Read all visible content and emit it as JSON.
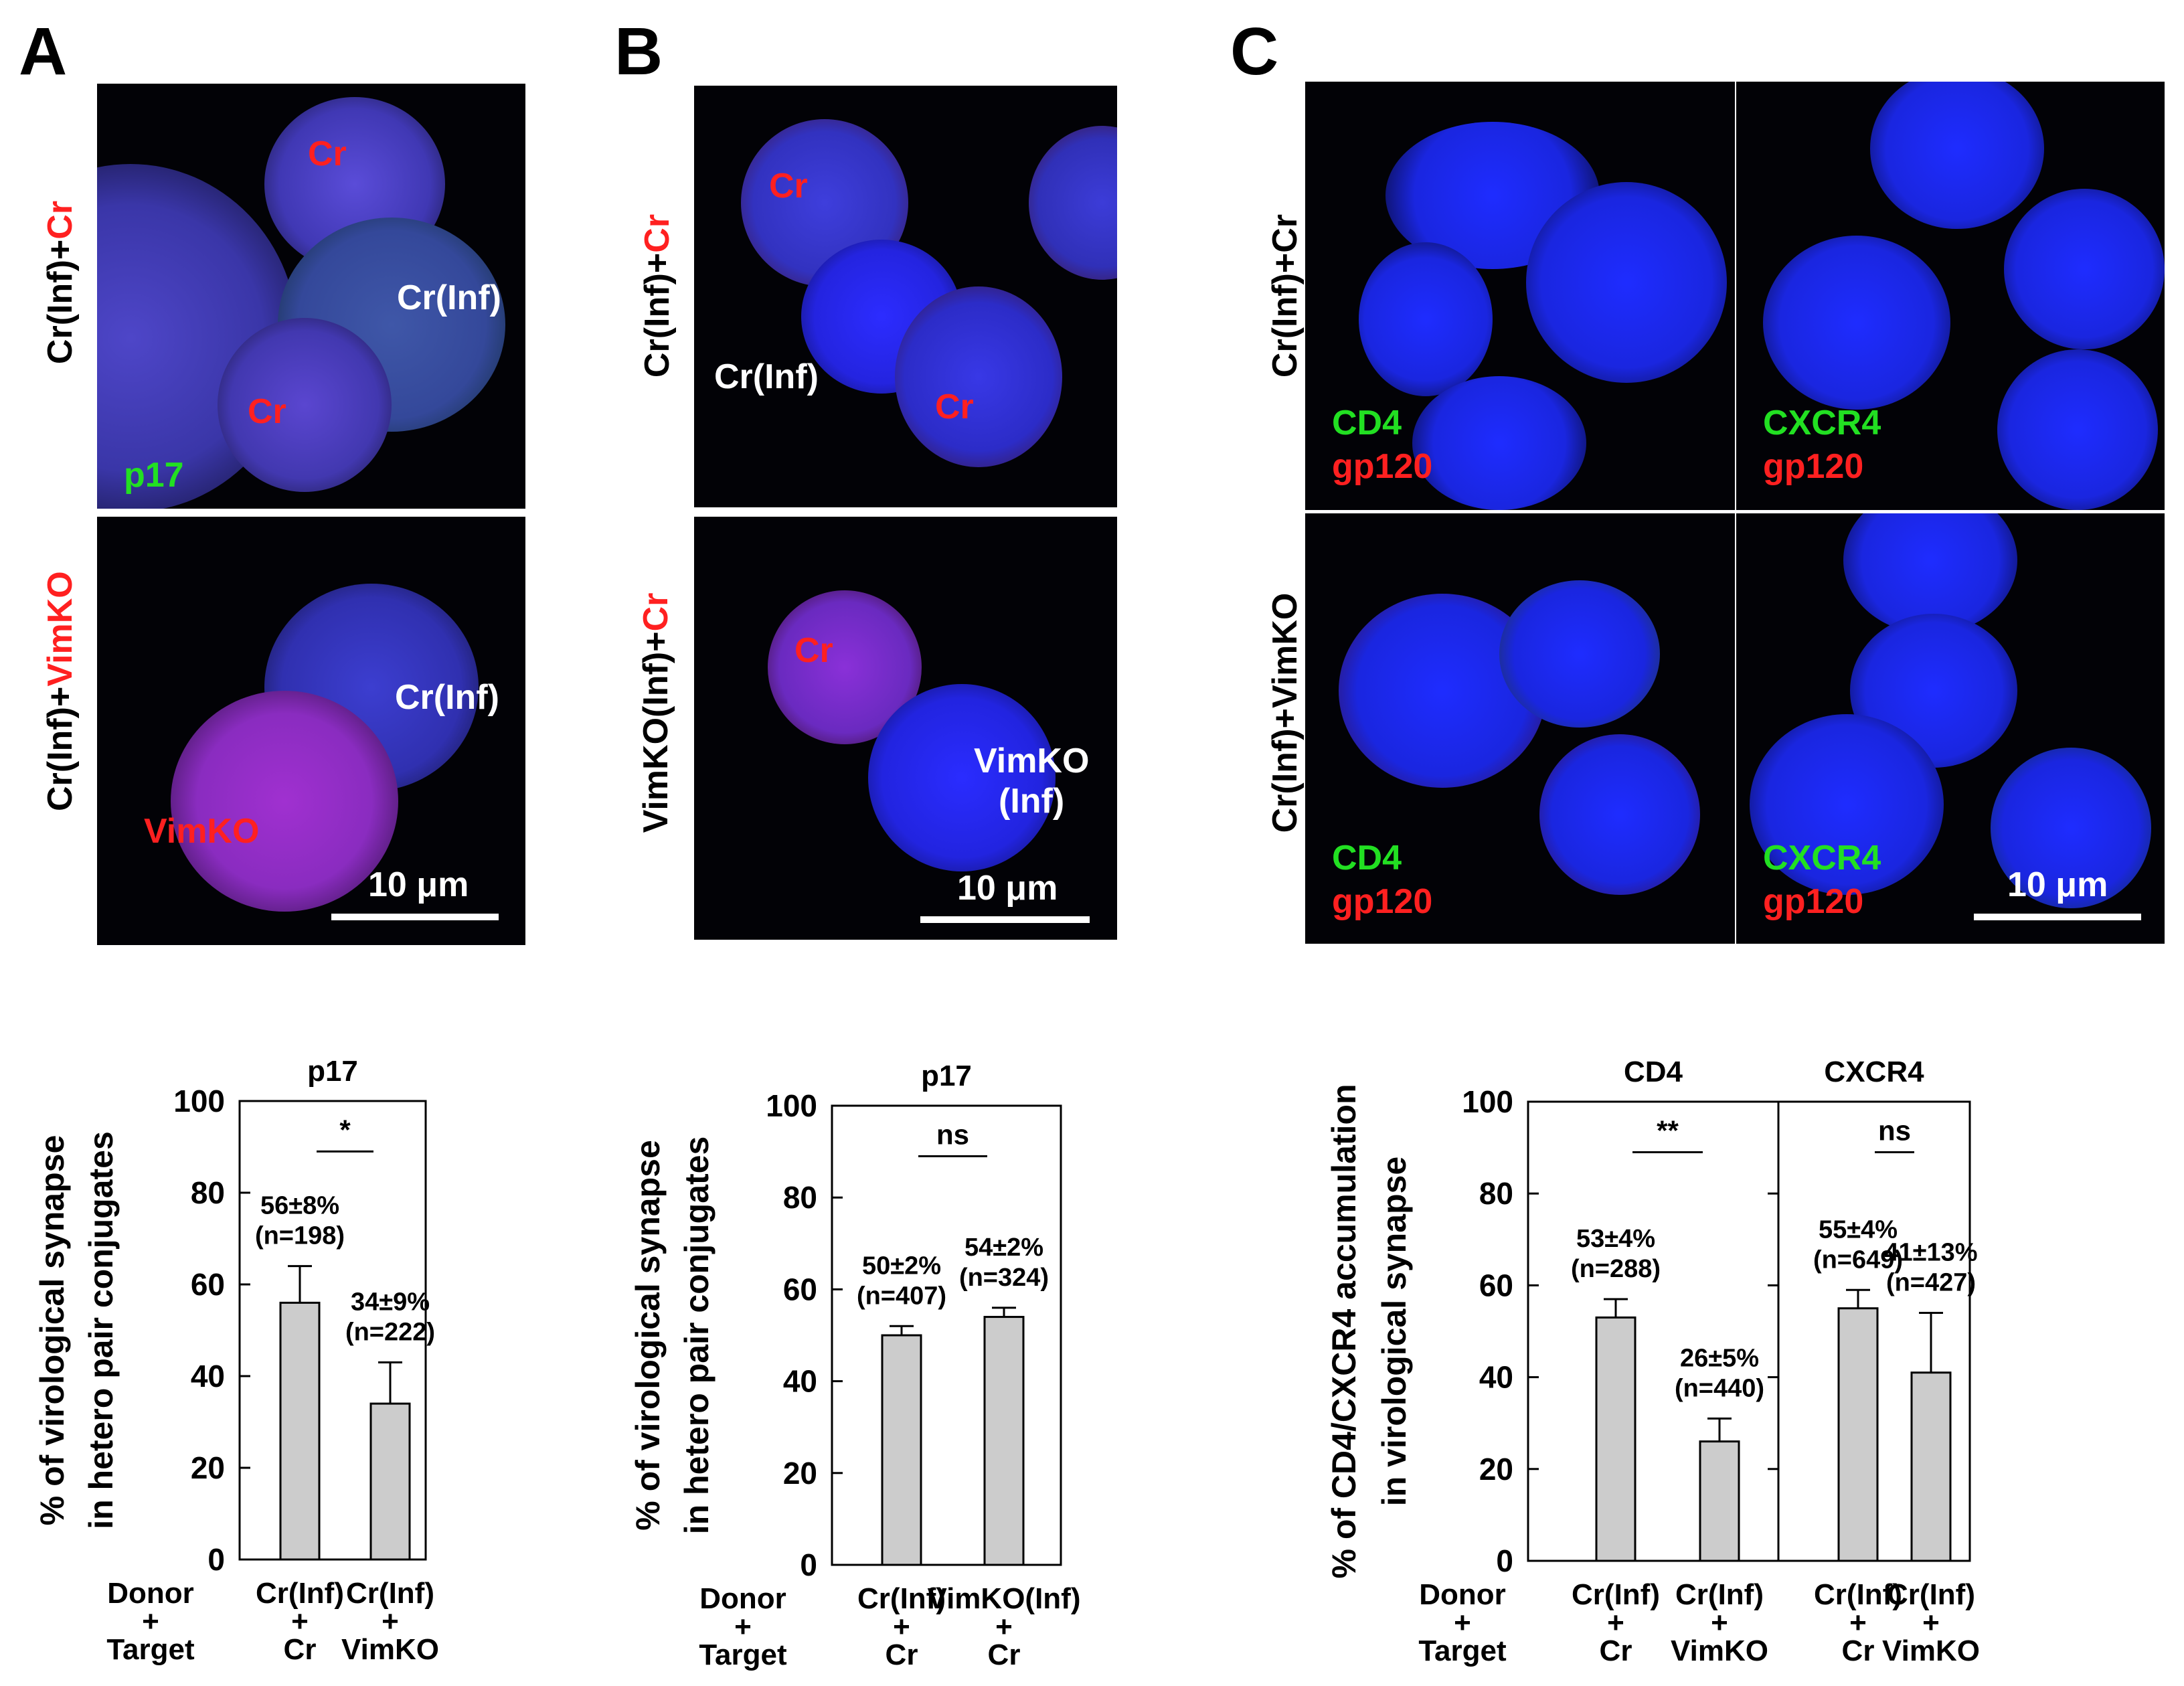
{
  "panels": {
    "A": {
      "letter": "A",
      "row1_label_black": "Cr(Inf)+",
      "row1_label_red": "Cr",
      "row2_label_black": "Cr(Inf)+",
      "row2_label_red": "VimKO",
      "img1": {
        "cells": [
          "Cr",
          "Cr(Inf)",
          "Cr"
        ],
        "stain": "p17"
      },
      "img2": {
        "cells": [
          "Cr(Inf)",
          "VimKO"
        ]
      },
      "scale": "10 μm"
    },
    "B": {
      "letter": "B",
      "row1_label_black": "Cr(Inf)+",
      "row1_label_red": "Cr",
      "row2_label_black": "VimKO(Inf)+",
      "row2_label_red": "Cr",
      "img1": {
        "cells": [
          "Cr",
          "Cr(Inf)",
          "Cr"
        ]
      },
      "img2": {
        "cells": [
          "Cr",
          "VimKO",
          "(Inf)"
        ]
      },
      "scale": "10 μm"
    },
    "C": {
      "letter": "C",
      "row1_label": "Cr(Inf)+Cr",
      "row2_label": "Cr(Inf)+VimKO",
      "stain_cd4": "CD4",
      "stain_cxcr4": "CXCR4",
      "stain_gp120": "gp120",
      "scale": "10 μm"
    }
  },
  "colors": {
    "nucleus": "#2a3cff",
    "p17_green": "#22e022",
    "label_red": "#ff2020",
    "bar_fill": "#cccccc"
  },
  "chart_data": [
    {
      "type": "bar",
      "title": "p17",
      "ylabel": "% of virological synapse in hetero pair conjugates",
      "ylim": [
        0,
        100
      ],
      "yticks": [
        "0",
        "20",
        "40",
        "60",
        "80",
        "100"
      ],
      "row_label": [
        "Donor",
        "+",
        "Target"
      ],
      "categories": [
        [
          "Cr(Inf)",
          "+",
          "Cr"
        ],
        [
          "Cr(Inf)",
          "+",
          "VimKO"
        ]
      ],
      "values": [
        56,
        34
      ],
      "errors": [
        8,
        9
      ],
      "annotations": [
        [
          "56±8%",
          "(n=198)"
        ],
        [
          "34±9%",
          "(n=222)"
        ]
      ],
      "significance": "*"
    },
    {
      "type": "bar",
      "title": "p17",
      "ylabel": "% of virological synapse in hetero pair conjugates",
      "ylim": [
        0,
        100
      ],
      "yticks": [
        "0",
        "20",
        "40",
        "60",
        "80",
        "100"
      ],
      "row_label": [
        "Donor",
        "+",
        "Target"
      ],
      "categories": [
        [
          "Cr(Inf)",
          "+",
          "Cr"
        ],
        [
          "VimKO(Inf)",
          "+",
          "Cr"
        ]
      ],
      "values": [
        50,
        54
      ],
      "errors": [
        2,
        2
      ],
      "annotations": [
        [
          "50±2%",
          "(n=407)"
        ],
        [
          "54±2%",
          "(n=324)"
        ]
      ],
      "significance": "ns"
    },
    {
      "type": "bar",
      "ylabel": "% of CD4/CXCR4 accumulation in virological synapse",
      "ylim": [
        0,
        100
      ],
      "yticks": [
        "0",
        "20",
        "40",
        "60",
        "80",
        "100"
      ],
      "row_label": [
        "Donor",
        "+",
        "Target"
      ],
      "groups": [
        {
          "title": "CD4",
          "categories": [
            [
              "Cr(Inf)",
              "+",
              "Cr"
            ],
            [
              "Cr(Inf)",
              "+",
              "VimKO"
            ]
          ],
          "values": [
            53,
            26
          ],
          "errors": [
            4,
            5
          ],
          "annotations": [
            [
              "53±4%",
              "(n=288)"
            ],
            [
              "26±5%",
              "(n=440)"
            ]
          ],
          "significance": "**"
        },
        {
          "title": "CXCR4",
          "categories": [
            [
              "Cr(Inf)",
              "+",
              "Cr"
            ],
            [
              "Cr(Inf)",
              "+",
              "VimKO"
            ]
          ],
          "values": [
            55,
            41
          ],
          "errors": [
            4,
            13
          ],
          "annotations": [
            [
              "55±4%",
              "(n=649)"
            ],
            [
              "41±13%",
              "(n=427)"
            ]
          ],
          "significance": "ns"
        }
      ]
    }
  ]
}
